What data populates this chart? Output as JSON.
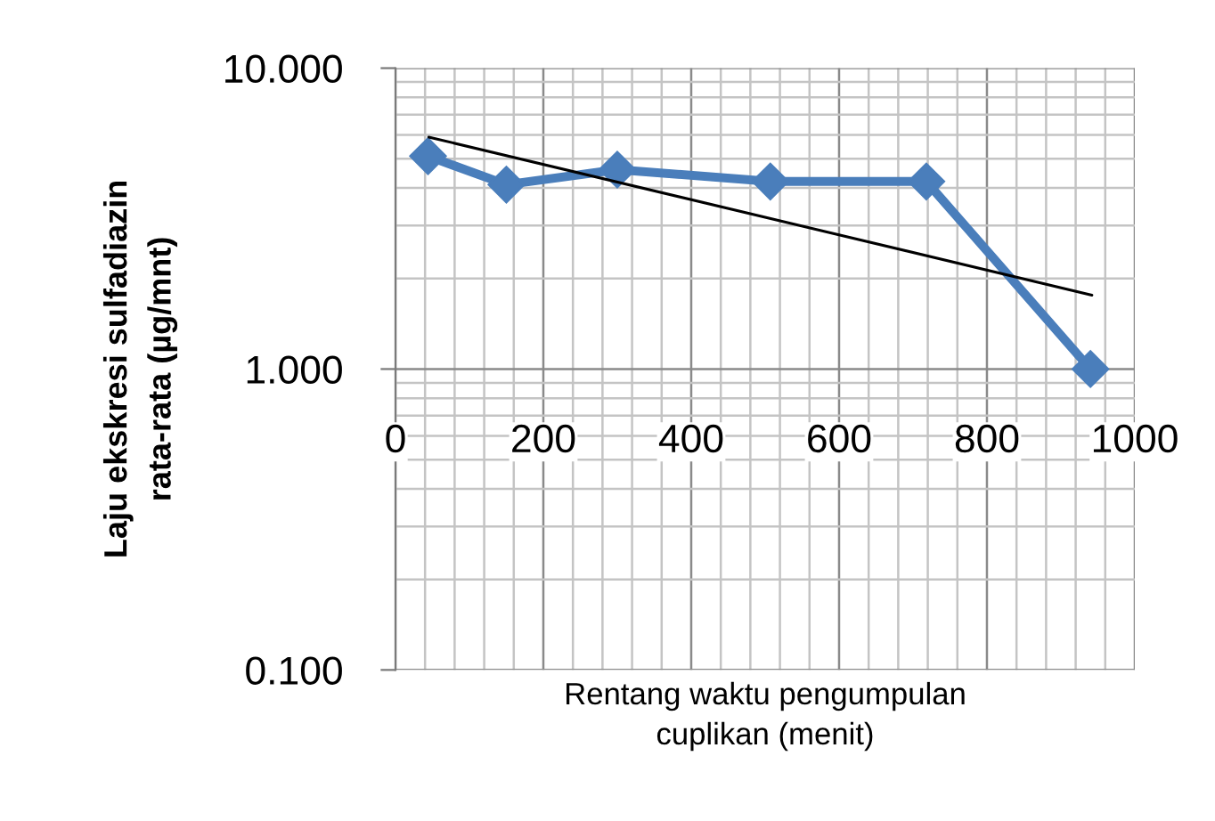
{
  "chart_data": {
    "type": "line",
    "xlabel": "Rentang waktu pengumpulan\ncuplikan (menit)",
    "ylabel": "Laju ekskresi sulfadiazin\nrata-rata (µg/mnt)",
    "log": "y",
    "grid": true,
    "xlim": [
      0,
      1000
    ],
    "xticks": [
      0,
      200,
      400,
      600,
      800,
      1000
    ],
    "ylim": [
      0.1,
      10
    ],
    "yticks": [
      {
        "value": 0.1,
        "label": "0.100"
      },
      {
        "value": 1,
        "label": "1.000"
      },
      {
        "value": 10,
        "label": "10.000"
      }
    ],
    "series": [
      {
        "color": "#4a7ebb",
        "x": [
          44,
          150,
          300,
          507,
          718,
          940
        ],
        "values": [
          5.1,
          4.1,
          4.6,
          4.2,
          4.2,
          1.0
        ],
        "marker": "diamond",
        "line_style": "solid"
      },
      {
        "color": "#000000",
        "x": [
          45,
          942
        ],
        "values": [
          5.9,
          1.76
        ],
        "marker": "none",
        "line_style": "solid"
      }
    ]
  }
}
